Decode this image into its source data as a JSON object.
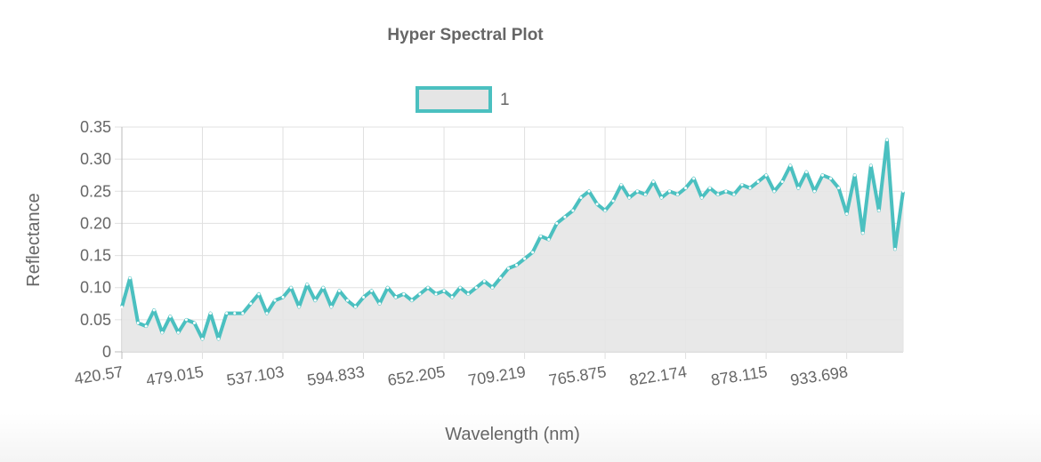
{
  "chart_data": {
    "type": "line",
    "title": "Hyper Spectral Plot",
    "x_label": "Wavelength (nm)",
    "y_label": "Reflectance",
    "categories": [
      "420.57",
      null,
      null,
      null,
      null,
      null,
      null,
      null,
      null,
      null,
      "479.015",
      null,
      null,
      null,
      null,
      null,
      null,
      null,
      null,
      null,
      "537.103",
      null,
      null,
      null,
      null,
      null,
      null,
      null,
      null,
      null,
      "594.833",
      null,
      null,
      null,
      null,
      null,
      null,
      null,
      null,
      null,
      "652.205",
      null,
      null,
      null,
      null,
      null,
      null,
      null,
      null,
      null,
      "709.219",
      null,
      null,
      null,
      null,
      null,
      null,
      null,
      null,
      null,
      "765.875",
      null,
      null,
      null,
      null,
      null,
      null,
      null,
      null,
      null,
      "822.174",
      null,
      null,
      null,
      null,
      null,
      null,
      null,
      null,
      null,
      "878.115",
      null,
      null,
      null,
      null,
      null,
      null,
      null,
      null,
      null,
      "933.698",
      null,
      null,
      null,
      null,
      null,
      null,
      null
    ],
    "series": [
      {
        "name": "1",
        "color": "#4bc0c0",
        "fill": "#e5e5e5",
        "values": [
          0.07,
          0.115,
          0.045,
          0.04,
          0.065,
          0.03,
          0.055,
          0.03,
          0.05,
          0.045,
          0.02,
          0.06,
          0.02,
          0.06,
          0.06,
          0.06,
          0.075,
          0.09,
          0.06,
          0.08,
          0.085,
          0.1,
          0.07,
          0.105,
          0.08,
          0.1,
          0.07,
          0.095,
          0.08,
          0.07,
          0.085,
          0.095,
          0.075,
          0.1,
          0.085,
          0.09,
          0.08,
          0.09,
          0.1,
          0.09,
          0.095,
          0.085,
          0.1,
          0.09,
          0.1,
          0.11,
          0.1,
          0.115,
          0.13,
          0.135,
          0.145,
          0.155,
          0.18,
          0.175,
          0.2,
          0.21,
          0.22,
          0.24,
          0.25,
          0.23,
          0.22,
          0.235,
          0.26,
          0.24,
          0.25,
          0.245,
          0.265,
          0.24,
          0.25,
          0.245,
          0.255,
          0.27,
          0.24,
          0.255,
          0.245,
          0.25,
          0.245,
          0.26,
          0.255,
          0.265,
          0.275,
          0.25,
          0.265,
          0.29,
          0.255,
          0.28,
          0.25,
          0.275,
          0.27,
          0.255,
          0.215,
          0.275,
          0.185,
          0.29,
          0.22,
          0.33,
          0.16,
          0.25
        ]
      }
    ],
    "ylim": [
      0,
      0.35
    ],
    "yticks": [
      0,
      0.05,
      {
        "value": 0.1,
        "label": "0.10"
      },
      0.15,
      {
        "value": 0.2,
        "label": "0.20"
      },
      0.25,
      {
        "value": 0.3,
        "label": "0.30"
      },
      0.35
    ],
    "grid": true
  }
}
